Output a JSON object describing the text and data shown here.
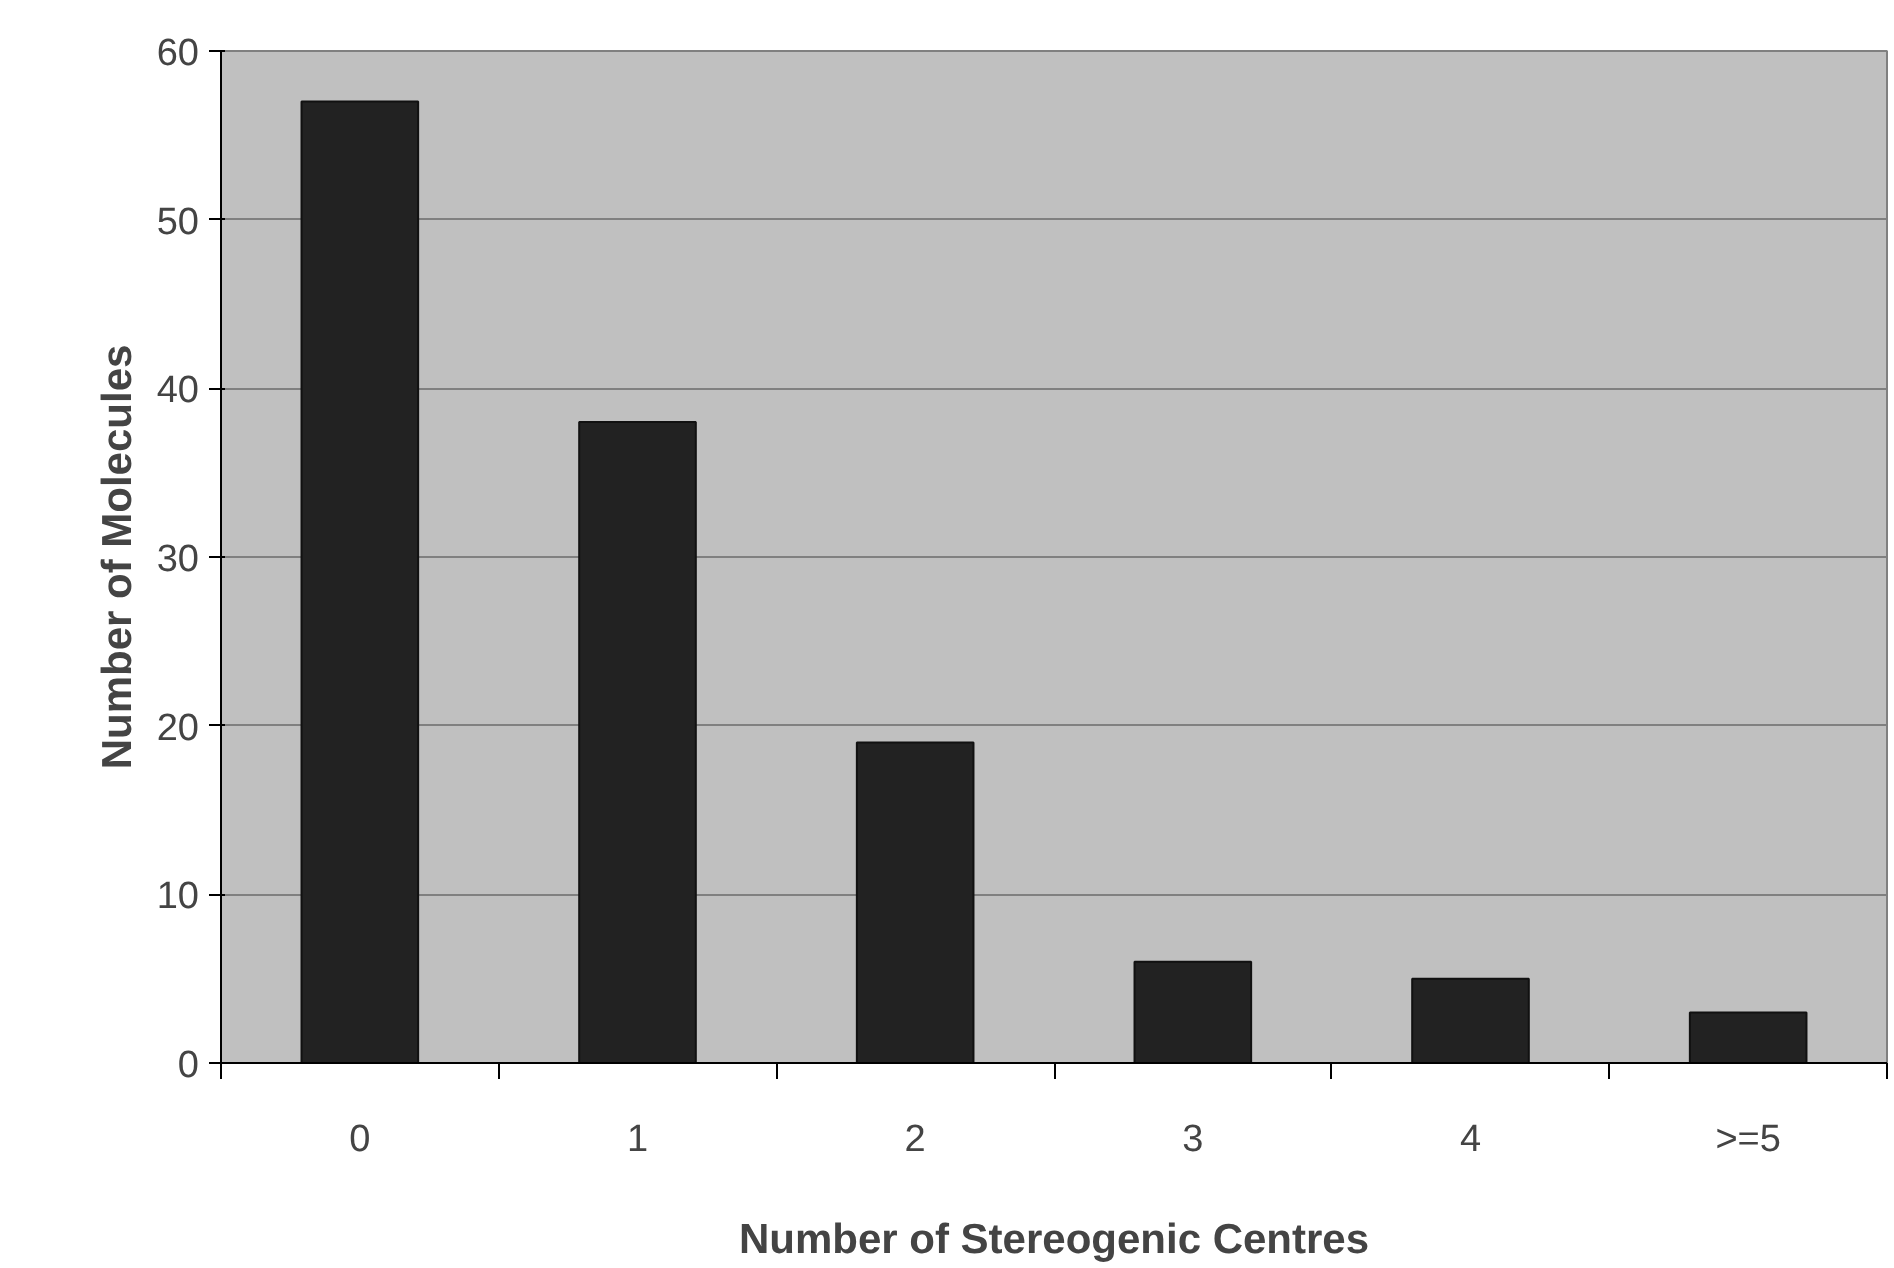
{
  "chart_data": {
    "type": "bar",
    "xlabel": "Number of Stereogenic Centres",
    "ylabel": "Number of Molecules",
    "categories": [
      "0",
      "1",
      "2",
      "3",
      "4",
      ">=5"
    ],
    "values": [
      57,
      38,
      19,
      6,
      5,
      3
    ],
    "color": "#222222",
    "ylim": [
      0,
      60
    ],
    "yticks": [
      0,
      10,
      20,
      30,
      40,
      50,
      60
    ],
    "grid": "y"
  }
}
